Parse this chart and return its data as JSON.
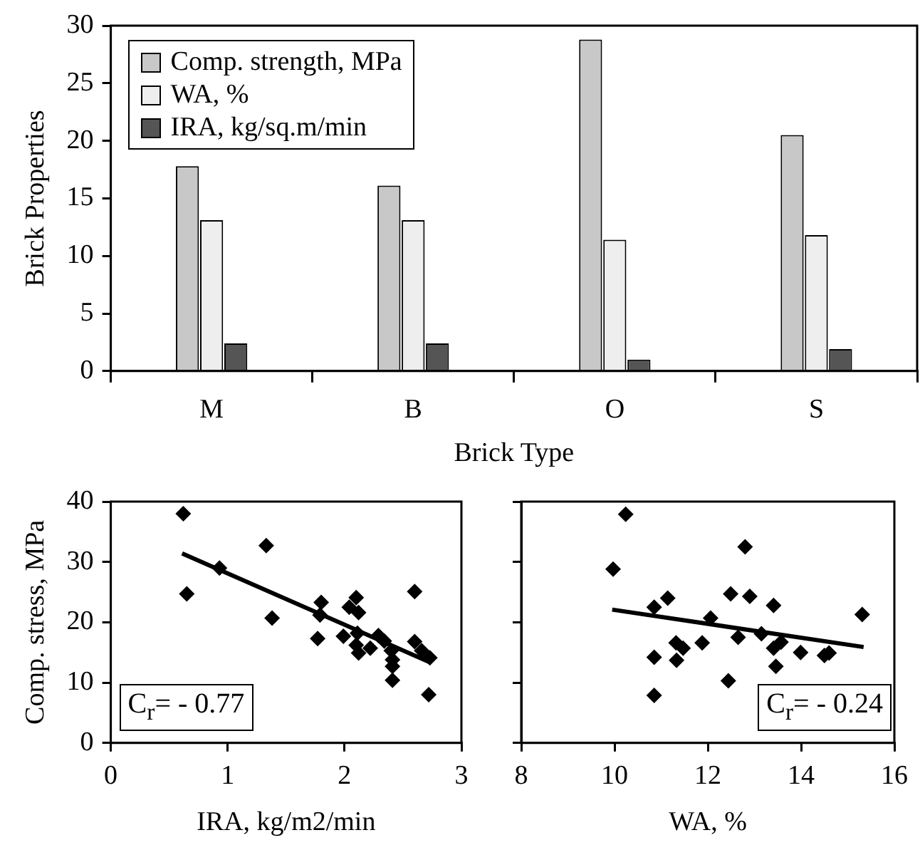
{
  "chart_data": [
    {
      "type": "bar",
      "xlabel": "Brick Type",
      "ylabel": "Brick Properties",
      "categories": [
        "M",
        "B",
        "O",
        "S"
      ],
      "series": [
        {
          "name": "Comp. strength, MPa",
          "color": "#c8c8c8",
          "values": [
            17.8,
            16.1,
            28.8,
            20.5
          ]
        },
        {
          "name": "WA, %",
          "color": "#eeeeee",
          "values": [
            13.1,
            13.1,
            11.4,
            11.8
          ]
        },
        {
          "name": "IRA, kg/sq.m/min",
          "color": "#555555",
          "values": [
            2.4,
            2.4,
            1.0,
            1.9
          ]
        }
      ],
      "ylim": [
        0,
        30
      ],
      "yticks": [
        0,
        5,
        10,
        15,
        20,
        25,
        30
      ],
      "grid": false,
      "legend": "top left"
    },
    {
      "type": "scatter",
      "xlabel": "IRA, kg/m2/min",
      "ylabel": "Comp. stress, MPa",
      "series": [
        {
          "type": "scatter",
          "color": "#000000",
          "marker": "diamond",
          "x": [
            0.62,
            0.65,
            1.33,
            1.38,
            0.93,
            1.8,
            1.79,
            1.77,
            1.99,
            2.1,
            2.04,
            2.12,
            2.11,
            2.1,
            2.12,
            2.22,
            2.29,
            2.34,
            2.4,
            2.41,
            2.41,
            2.41,
            2.6,
            2.6,
            2.66,
            2.73,
            2.72
          ],
          "values": [
            38,
            24.7,
            32.7,
            20.7,
            29,
            23.3,
            21.2,
            17.3,
            17.7,
            24.1,
            22.5,
            21.6,
            18.2,
            16.2,
            14.9,
            15.7,
            17.8,
            16.9,
            15.3,
            13.8,
            12.7,
            10.4,
            25.1,
            16.8,
            15.3,
            14.1,
            8
          ]
        },
        {
          "type": "line",
          "color": "#000000",
          "marker": "none",
          "x": [
            0.61,
            2.74
          ],
          "values": [
            31.4,
            13.3
          ]
        }
      ],
      "xlim": [
        0,
        3
      ],
      "xticks": [
        0,
        1,
        2,
        3
      ],
      "ylim": [
        0,
        40
      ],
      "yticks": [
        0,
        10,
        20,
        30,
        40
      ],
      "grid": false,
      "legend": false,
      "annotations": [
        "C$_{r}$= - 0.77"
      ]
    },
    {
      "type": "scatter",
      "xlabel": "WA, %",
      "series": [
        {
          "type": "scatter",
          "color": "#000000",
          "marker": "diamond",
          "x": [
            10.24,
            9.97,
            10.85,
            11.14,
            10.85,
            10.85,
            11.32,
            11.33,
            11.47,
            11.88,
            12.06,
            12.49,
            12.8,
            12.9,
            12.65,
            12.44,
            13.15,
            13.41,
            13.41,
            13.57,
            13.46,
            13.99,
            14.5,
            14.6,
            15.31
          ],
          "values": [
            37.9,
            28.8,
            22.5,
            24,
            14.2,
            7.9,
            16.6,
            13.7,
            15.7,
            16.6,
            20.7,
            24.7,
            32.5,
            24.3,
            17.5,
            10.3,
            18.1,
            22.8,
            15.7,
            16.7,
            12.7,
            15,
            14.5,
            14.9,
            21.3
          ]
        },
        {
          "type": "line",
          "color": "#000000",
          "marker": "none",
          "x": [
            9.95,
            15.34
          ],
          "values": [
            22.1,
            15.9
          ]
        }
      ],
      "xlim": [
        8,
        16
      ],
      "xticks": [
        8,
        10,
        12,
        14,
        16
      ],
      "ylim": [
        0,
        40
      ],
      "yticks": [
        0,
        10,
        20,
        30,
        40
      ],
      "grid": false,
      "legend": false,
      "tick_labels": "x",
      "annotations": [
        "C$_{r}$= - 0.24"
      ]
    }
  ]
}
